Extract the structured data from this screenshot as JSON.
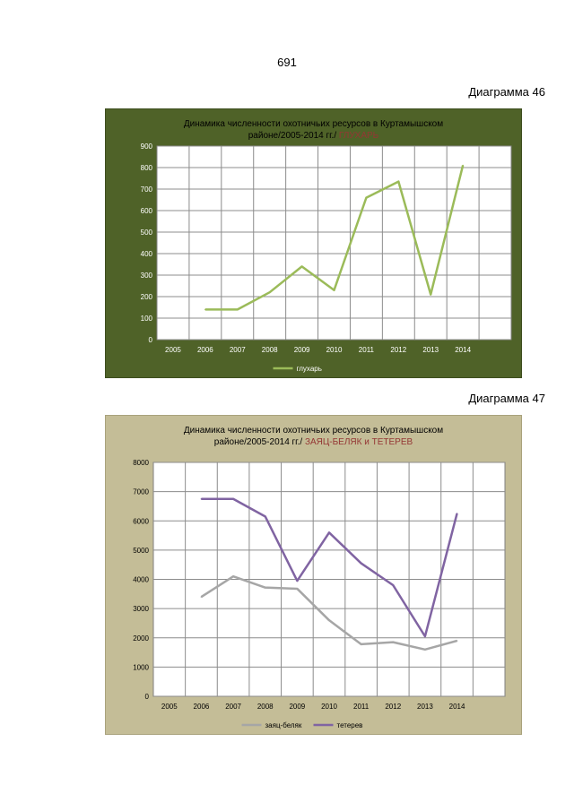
{
  "page_number": "691",
  "chart_data": [
    {
      "type": "line",
      "label": "Диаграмма 46",
      "title_line1": "Динамика численности охотничьих ресурсов  в  Куртамышском",
      "title_line2": "районе/2005-2014 гг./",
      "title_highlight": "ГЛУХАРЬ",
      "categories": [
        "2005",
        "2006",
        "2007",
        "2008",
        "2009",
        "2010",
        "2011",
        "2012",
        "2013",
        "2014"
      ],
      "y_ticks": [
        "0",
        "100",
        "200",
        "300",
        "400",
        "500",
        "600",
        "700",
        "800",
        "900"
      ],
      "ylim": [
        0,
        900
      ],
      "grid": true,
      "legend_position": "bottom",
      "series": [
        {
          "name": "глухарь",
          "color": "#9bbb59",
          "values": [
            null,
            140,
            140,
            220,
            340,
            230,
            660,
            735,
            210,
            810
          ]
        }
      ],
      "colors": {
        "background": "#4f6228",
        "plot": "#ffffff",
        "highlight": "#943634"
      }
    },
    {
      "type": "line",
      "label": "Диаграмма 47",
      "title_line1": "Динамика численности  охотничьих ресурсов   в  Куртамышском",
      "title_line2": "районе/2005-2014   гг./",
      "title_highlight": "ЗАЯЦ-БЕЛЯК",
      "title_mid": "и",
      "title_highlight2": "ТЕТЕРЕВ",
      "categories": [
        "2005",
        "2006",
        "2007",
        "2008",
        "2009",
        "2010",
        "2011",
        "2012",
        "2013",
        "2014"
      ],
      "y_ticks": [
        "0",
        "1000",
        "2000",
        "3000",
        "4000",
        "5000",
        "6000",
        "7000",
        "8000"
      ],
      "ylim": [
        0,
        8000
      ],
      "grid": true,
      "legend_position": "bottom",
      "series": [
        {
          "name": "заяц-беляк",
          "color": "#a6a6a6",
          "values": [
            null,
            3400,
            4100,
            3720,
            3680,
            2600,
            1780,
            1850,
            1600,
            1900
          ]
        },
        {
          "name": "тетерев",
          "color": "#8064a2",
          "values": [
            null,
            6750,
            6750,
            6150,
            3950,
            5600,
            4550,
            3800,
            2050,
            6250
          ]
        }
      ],
      "colors": {
        "background": "#c4bd97",
        "plot": "#ffffff",
        "highlight": "#943634"
      }
    }
  ]
}
